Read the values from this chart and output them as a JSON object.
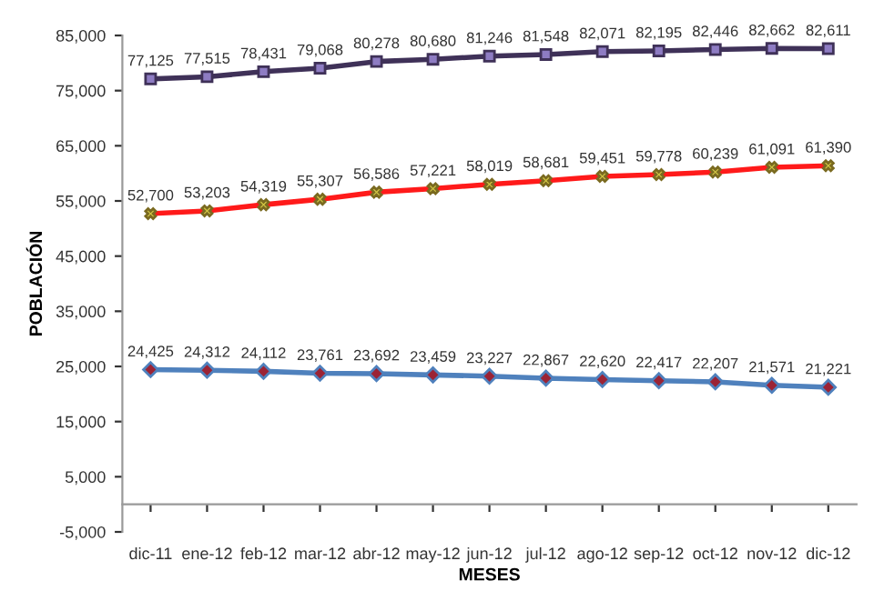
{
  "chart_data": {
    "type": "line",
    "xlabel": "MESES",
    "ylabel": "POBLACIÓN",
    "categories": [
      "dic-11",
      "ene-12",
      "feb-12",
      "mar-12",
      "abr-12",
      "may-12",
      "jun-12",
      "jul-12",
      "ago-12",
      "sep-12",
      "oct-12",
      "nov-12",
      "dic-12"
    ],
    "series": [
      {
        "color": "#3f3158",
        "marker": "square",
        "values": [
          77125,
          77515,
          78431,
          79068,
          80278,
          80680,
          81246,
          81548,
          82071,
          82195,
          82446,
          82662,
          82611
        ],
        "value_labels": [
          "77,125",
          "77,515",
          "78,431",
          "79,068",
          "80,278",
          "80,680",
          "81,246",
          "81,548",
          "82,071",
          "82,195",
          "82,446",
          "82,662",
          "82,611"
        ]
      },
      {
        "color": "#ff1a1a",
        "marker": "cross",
        "values": [
          52700,
          53203,
          54319,
          55307,
          56586,
          57221,
          58019,
          58681,
          59451,
          59778,
          60239,
          61091,
          61390
        ],
        "value_labels": [
          "52,700",
          "53,203",
          "54,319",
          "55,307",
          "56,586",
          "57,221",
          "58,019",
          "58,681",
          "59,451",
          "59,778",
          "60,239",
          "61,091",
          "61,390"
        ]
      },
      {
        "color": "#4f81bd",
        "marker": "diamond",
        "values": [
          24425,
          24312,
          24112,
          23761,
          23692,
          23459,
          23227,
          22867,
          22620,
          22417,
          22207,
          21571,
          21221
        ],
        "value_labels": [
          "24,425",
          "24,312",
          "24,112",
          "23,761",
          "23,692",
          "23,459",
          "23,227",
          "22,867",
          "22,620",
          "22,417",
          "22,207",
          "21,571",
          "21,221"
        ]
      }
    ],
    "ylim": [
      -5000,
      85000
    ],
    "yticks": [
      {
        "value": -5000,
        "label": "-5,000"
      },
      {
        "value": 5000,
        "label": "5,000"
      },
      {
        "value": 15000,
        "label": "15,000"
      },
      {
        "value": 25000,
        "label": "25,000"
      },
      {
        "value": 35000,
        "label": "35,000"
      },
      {
        "value": 45000,
        "label": "45,000"
      },
      {
        "value": 55000,
        "label": "55,000"
      },
      {
        "value": 65000,
        "label": "65,000"
      },
      {
        "value": 75000,
        "label": "75,000"
      },
      {
        "value": 85000,
        "label": "85,000"
      }
    ],
    "grid": false,
    "legend": false,
    "line_style": "solid"
  }
}
